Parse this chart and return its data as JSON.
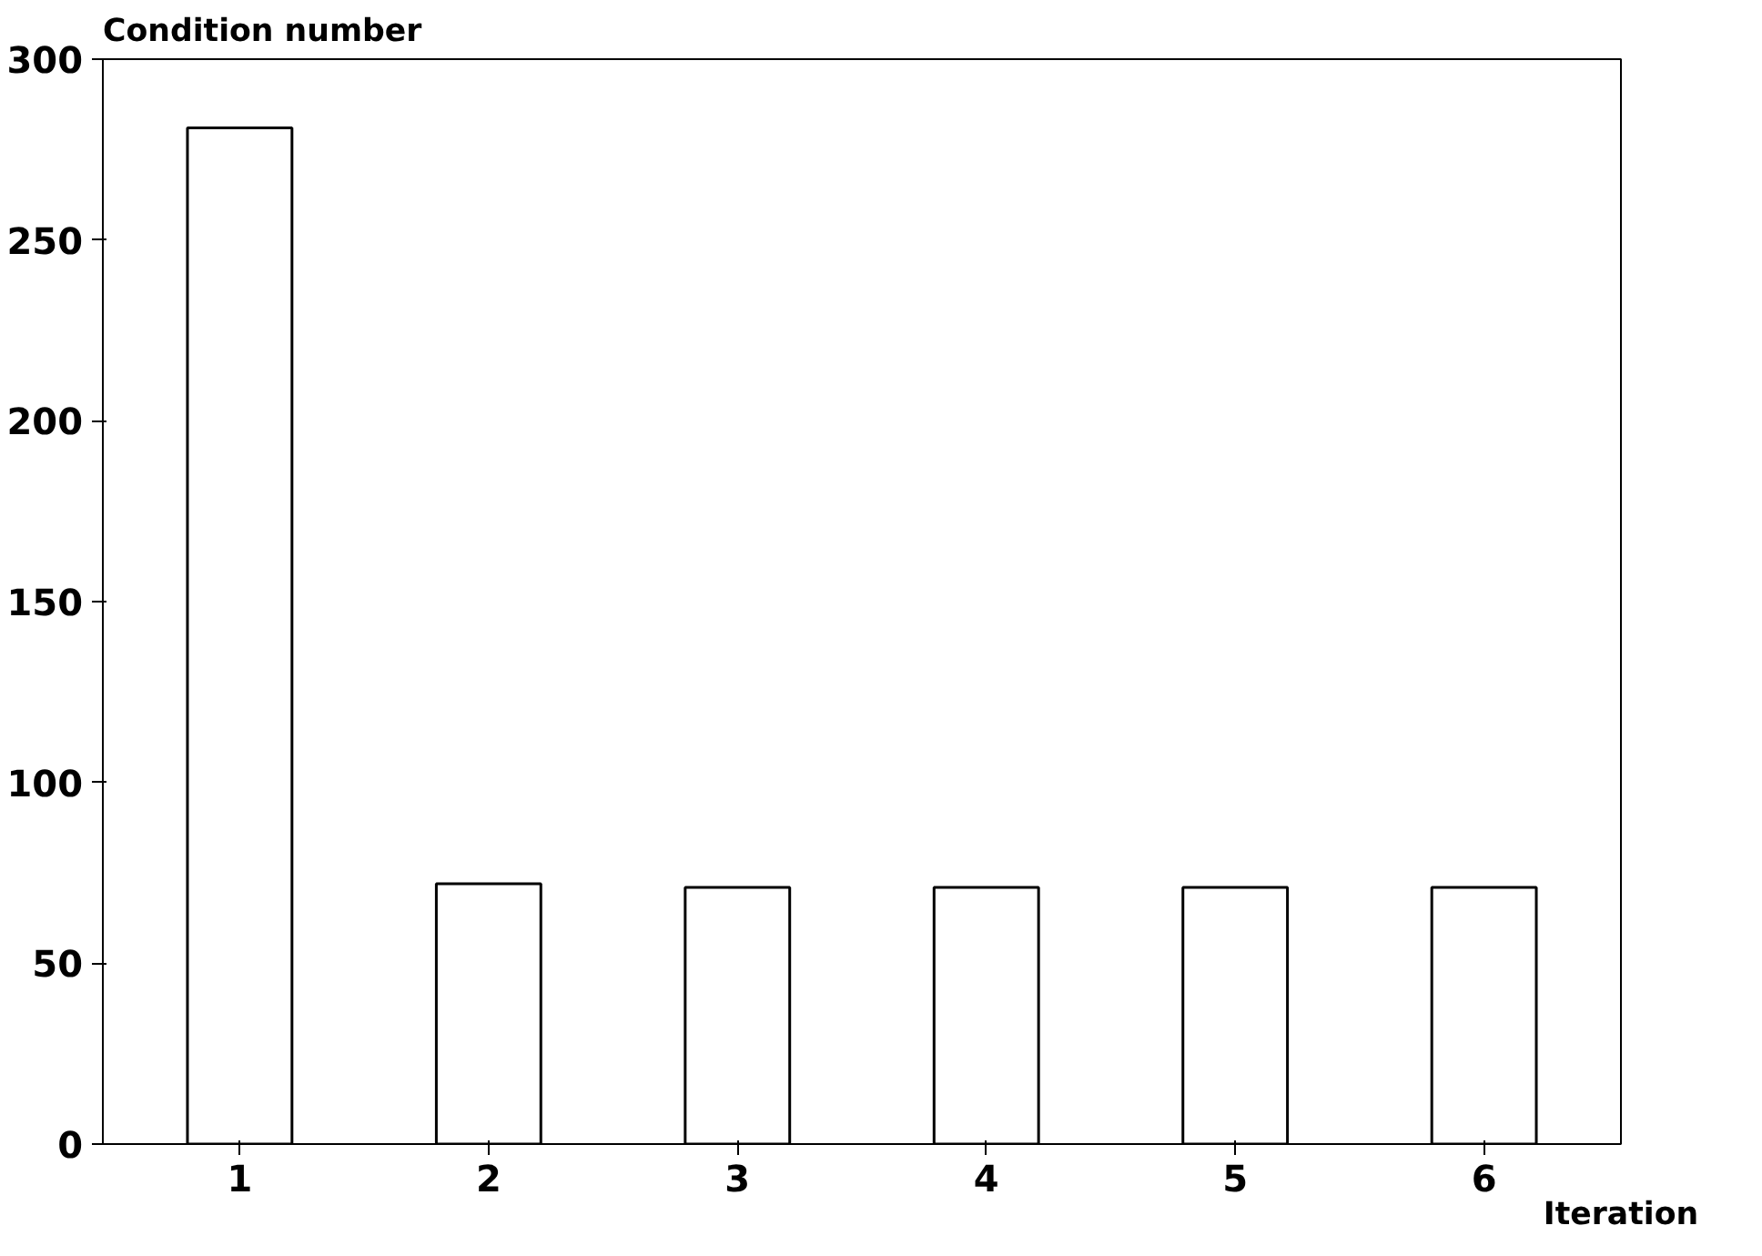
{
  "chart_data": {
    "type": "bar",
    "ylabel": "Condition number",
    "xlabel": "Iteration",
    "categories": [
      "1",
      "2",
      "3",
      "4",
      "5",
      "6"
    ],
    "values": [
      281,
      72,
      71,
      71,
      71,
      71
    ],
    "color": "#ffffff",
    "ylim": [
      0,
      300
    ],
    "yticks": [
      0,
      50,
      100,
      150,
      200,
      250,
      300
    ],
    "grid": false
  }
}
